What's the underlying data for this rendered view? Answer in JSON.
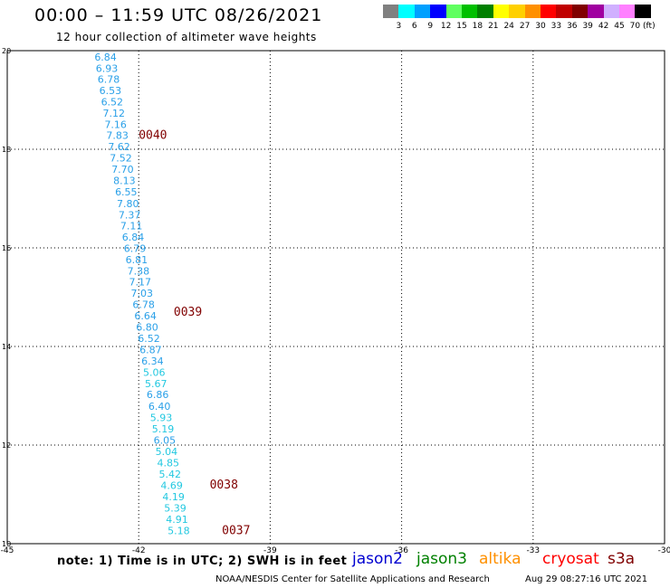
{
  "header": {
    "title": "00:00 – 11:59 UTC 08/26/2021",
    "subtitle": "12 hour collection of altimeter wave heights"
  },
  "colorbar": {
    "unit_label": "(ft)",
    "items": [
      {
        "label": "3",
        "color": "#808080"
      },
      {
        "label": "6",
        "color": "#00ffff"
      },
      {
        "label": "9",
        "color": "#00a0ff"
      },
      {
        "label": "12",
        "color": "#0000ff"
      },
      {
        "label": "15",
        "color": "#60ff60"
      },
      {
        "label": "18",
        "color": "#00c000"
      },
      {
        "label": "21",
        "color": "#008000"
      },
      {
        "label": "24",
        "color": "#ffff00"
      },
      {
        "label": "27",
        "color": "#ffd000"
      },
      {
        "label": "30",
        "color": "#ff9000"
      },
      {
        "label": "33",
        "color": "#ff0000"
      },
      {
        "label": "36",
        "color": "#c00000"
      },
      {
        "label": "39",
        "color": "#800000"
      },
      {
        "label": "42",
        "color": "#a000a0"
      },
      {
        "label": "45",
        "color": "#d0b0ff"
      },
      {
        "label": "70",
        "color": "#ff80ff"
      },
      {
        "label": "",
        "color": "#000000"
      }
    ]
  },
  "map": {
    "x_ticks": [
      "-45",
      "-42",
      "-39",
      "-36",
      "-33",
      "-30"
    ],
    "x_values": [
      -45,
      -42,
      -39,
      -36,
      -33,
      -30
    ],
    "y_ticks": [
      "10",
      "12",
      "14",
      "16",
      "18",
      "20"
    ],
    "y_values": [
      10,
      12,
      14,
      16,
      18,
      20
    ],
    "lon_range": [
      -45,
      -30
    ],
    "lat_range": [
      10,
      20
    ],
    "grid": true,
    "observations": [
      {
        "value": "6.84",
        "lon": -43.01,
        "lat": 19.8,
        "color": "#2aa0e8"
      },
      {
        "value": "6.93",
        "lon": -42.98,
        "lat": 19.57,
        "color": "#2aa0e8"
      },
      {
        "value": "6.78",
        "lon": -42.94,
        "lat": 19.35,
        "color": "#2aa0e8"
      },
      {
        "value": "6.53",
        "lon": -42.9,
        "lat": 19.12,
        "color": "#2aa0e8"
      },
      {
        "value": "6.52",
        "lon": -42.86,
        "lat": 18.89,
        "color": "#2aa0e8"
      },
      {
        "value": "7.12",
        "lon": -42.82,
        "lat": 18.66,
        "color": "#2aa0e8"
      },
      {
        "value": "7.16",
        "lon": -42.78,
        "lat": 18.43,
        "color": "#2aa0e8"
      },
      {
        "value": "7.83",
        "lon": -42.74,
        "lat": 18.21,
        "color": "#2aa0e8"
      },
      {
        "value": "7.62",
        "lon": -42.7,
        "lat": 17.98,
        "color": "#2aa0e8"
      },
      {
        "value": "7.52",
        "lon": -42.66,
        "lat": 17.75,
        "color": "#2aa0e8"
      },
      {
        "value": "7.70",
        "lon": -42.62,
        "lat": 17.52,
        "color": "#2aa0e8"
      },
      {
        "value": "8.13",
        "lon": -42.58,
        "lat": 17.29,
        "color": "#2aa0e8"
      },
      {
        "value": "6.55",
        "lon": -42.54,
        "lat": 17.06,
        "color": "#2aa0e8"
      },
      {
        "value": "7.80",
        "lon": -42.5,
        "lat": 16.83,
        "color": "#2aa0e8"
      },
      {
        "value": "7.37",
        "lon": -42.46,
        "lat": 16.6,
        "color": "#2aa0e8"
      },
      {
        "value": "7.11",
        "lon": -42.42,
        "lat": 16.38,
        "color": "#2aa0e8"
      },
      {
        "value": "6.84",
        "lon": -42.38,
        "lat": 16.15,
        "color": "#2aa0e8"
      },
      {
        "value": "6.79",
        "lon": -42.34,
        "lat": 15.92,
        "color": "#2aa0e8"
      },
      {
        "value": "6.81",
        "lon": -42.3,
        "lat": 15.69,
        "color": "#2aa0e8"
      },
      {
        "value": "7.38",
        "lon": -42.26,
        "lat": 15.46,
        "color": "#2aa0e8"
      },
      {
        "value": "7.17",
        "lon": -42.22,
        "lat": 15.24,
        "color": "#2aa0e8"
      },
      {
        "value": "7.03",
        "lon": -42.18,
        "lat": 15.01,
        "color": "#2aa0e8"
      },
      {
        "value": "6.78",
        "lon": -42.14,
        "lat": 14.78,
        "color": "#2aa0e8"
      },
      {
        "value": "6.64",
        "lon": -42.1,
        "lat": 14.55,
        "color": "#2aa0e8"
      },
      {
        "value": "6.80",
        "lon": -42.06,
        "lat": 14.32,
        "color": "#2aa0e8"
      },
      {
        "value": "6.52",
        "lon": -42.02,
        "lat": 14.09,
        "color": "#2aa0e8"
      },
      {
        "value": "6.87",
        "lon": -41.98,
        "lat": 13.86,
        "color": "#2aa0e8"
      },
      {
        "value": "6.34",
        "lon": -41.94,
        "lat": 13.63,
        "color": "#2aa0e8"
      },
      {
        "value": "5.06",
        "lon": -41.9,
        "lat": 13.4,
        "color": "#22c8e0"
      },
      {
        "value": "5.67",
        "lon": -41.86,
        "lat": 13.17,
        "color": "#22c8e0"
      },
      {
        "value": "6.86",
        "lon": -41.82,
        "lat": 12.95,
        "color": "#2aa0e8"
      },
      {
        "value": "6.40",
        "lon": -41.78,
        "lat": 12.72,
        "color": "#2aa0e8"
      },
      {
        "value": "5.93",
        "lon": -41.74,
        "lat": 12.49,
        "color": "#22c8e0"
      },
      {
        "value": "5.19",
        "lon": -41.7,
        "lat": 12.26,
        "color": "#22c8e0"
      },
      {
        "value": "6.05",
        "lon": -41.66,
        "lat": 12.03,
        "color": "#2aa0e8"
      },
      {
        "value": "5.04",
        "lon": -41.62,
        "lat": 11.8,
        "color": "#22c8e0"
      },
      {
        "value": "4.85",
        "lon": -41.58,
        "lat": 11.57,
        "color": "#22c8e0"
      },
      {
        "value": "5.42",
        "lon": -41.54,
        "lat": 11.34,
        "color": "#22c8e0"
      },
      {
        "value": "4.69",
        "lon": -41.5,
        "lat": 11.11,
        "color": "#22c8e0"
      },
      {
        "value": "4.19",
        "lon": -41.46,
        "lat": 10.88,
        "color": "#22c8e0"
      },
      {
        "value": "5.39",
        "lon": -41.42,
        "lat": 10.65,
        "color": "#22c8e0"
      },
      {
        "value": "4.91",
        "lon": -41.38,
        "lat": 10.42,
        "color": "#22c8e0"
      },
      {
        "value": "5.18",
        "lon": -41.34,
        "lat": 10.19,
        "color": "#22c8e0"
      }
    ],
    "time_labels": [
      {
        "text": "0040",
        "lon": -42.0,
        "lat": 18.21,
        "color": "#800000"
      },
      {
        "text": "0039",
        "lon": -41.2,
        "lat": 14.62,
        "color": "#800000"
      },
      {
        "text": "0038",
        "lon": -40.38,
        "lat": 11.12,
        "color": "#800000"
      },
      {
        "text": "0037",
        "lon": -40.1,
        "lat": 10.19,
        "color": "#800000"
      }
    ]
  },
  "legend": {
    "note": "note: 1) Time is in UTC; 2) SWH is in feet",
    "satellites": [
      {
        "name": "jason2",
        "color": "#0000d0"
      },
      {
        "name": "jason3",
        "color": "#008000"
      },
      {
        "name": "altika",
        "color": "#ff9000"
      },
      {
        "name": "cryosat",
        "color": "#ff0000"
      },
      {
        "name": "s3a",
        "color": "#800000"
      }
    ]
  },
  "footer": {
    "credit": "NOAA/NESDIS Center for Satellite Applications and Research",
    "timestamp": "Aug 29 08:27:16 UTC 2021"
  }
}
